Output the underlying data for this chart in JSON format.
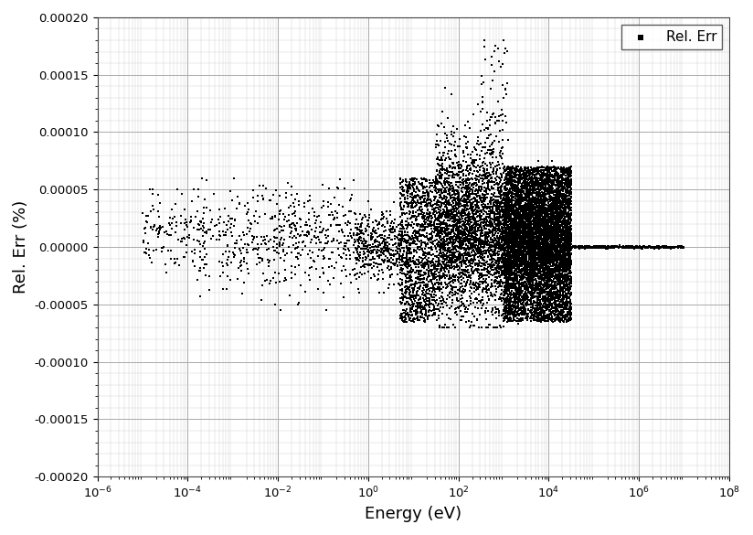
{
  "title": "",
  "xlabel": "Energy (eV)",
  "ylabel": "Rel. Err (%)",
  "legend_label": "Rel. Err",
  "xlim_log": [
    -6,
    8
  ],
  "ylim": [
    -0.0002,
    0.0002
  ],
  "yticks": [
    -0.0002,
    -0.00015,
    -0.0001,
    -5e-05,
    0.0,
    5e-05,
    0.0001,
    0.00015,
    0.0002
  ],
  "background_color": "#ffffff",
  "scatter_color": "#000000",
  "marker_size": 3.0,
  "text_color": "#000000",
  "axis_label_color": "#000000",
  "grid_major_color": "#aaaaaa",
  "grid_minor_color": "#cccccc",
  "seed": 42
}
